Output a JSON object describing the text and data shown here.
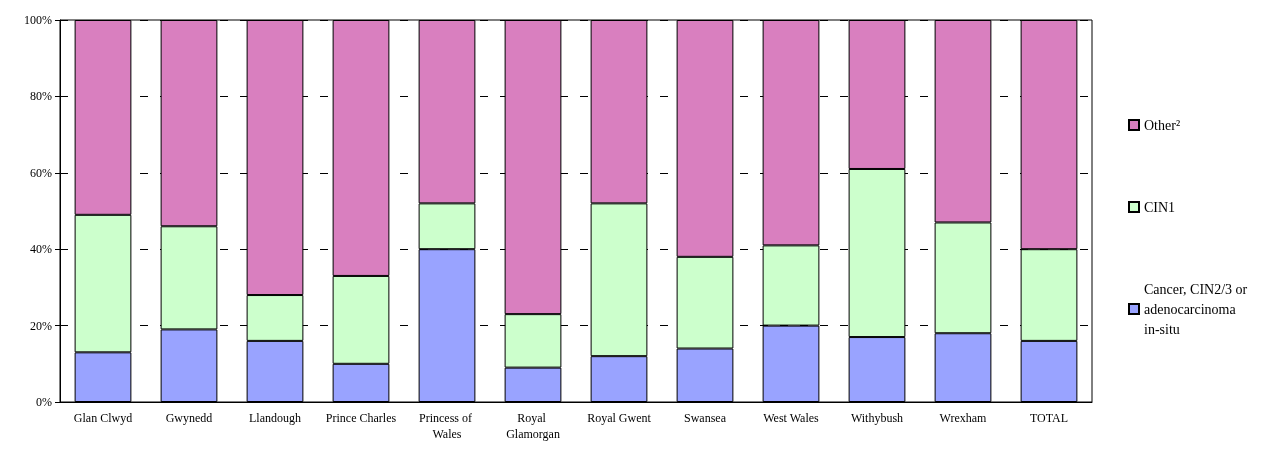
{
  "chart_data": {
    "type": "bar",
    "stacked": true,
    "categories": [
      "Glan Clwyd",
      "Gwynedd",
      "Llandough",
      "Prince Charles",
      "Princess of Wales",
      "Royal Glamorgan",
      "Royal Gwent",
      "Swansea",
      "West Wales",
      "Withybush",
      "Wrexham",
      "TOTAL"
    ],
    "series": [
      {
        "name": "Cancer, CIN2/3 or adenocarcinoma in-situ",
        "color": "#99a3ff",
        "values": [
          13,
          19,
          16,
          10,
          40,
          9,
          12,
          14,
          20,
          17,
          18,
          16
        ]
      },
      {
        "name": "CIN1",
        "color": "#ccffcc",
        "values": [
          36,
          27,
          12,
          23,
          12,
          14,
          40,
          24,
          21,
          44,
          29,
          24
        ]
      },
      {
        "name": "Other²",
        "color": "#d97fbf",
        "values": [
          51,
          54,
          72,
          67,
          48,
          77,
          48,
          62,
          59,
          39,
          53,
          60
        ]
      }
    ],
    "ylim": [
      0,
      100
    ],
    "yticks": [
      {
        "value": 0,
        "label": "0%"
      },
      {
        "value": 20,
        "label": "20%"
      },
      {
        "value": 40,
        "label": "40%"
      },
      {
        "value": 60,
        "label": "60%"
      },
      {
        "value": 80,
        "label": "80%"
      },
      {
        "value": 100,
        "label": "100%"
      }
    ],
    "grid": "y",
    "legend": "right"
  }
}
